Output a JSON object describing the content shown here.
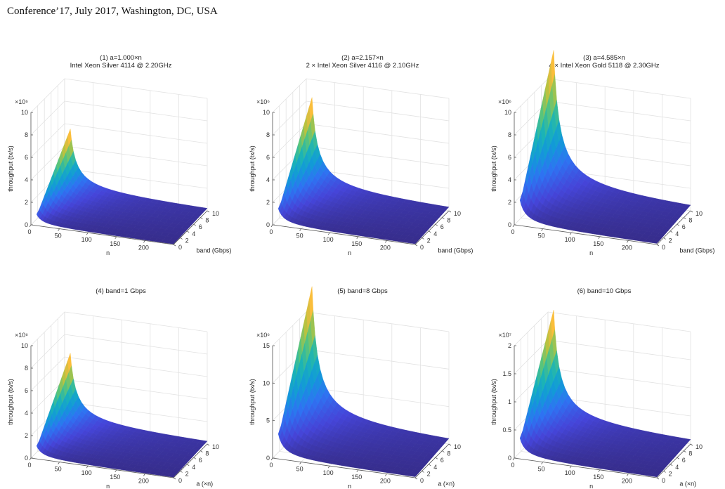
{
  "header": {
    "text": "Conference’17, July 2017, Washington, DC, USA"
  },
  "chart_data": [
    {
      "type": "surface",
      "title_lines": [
        "(1) a=1.000×n",
        "Intel Xeon Silver 4114 @ 2.20GHz"
      ],
      "xlabel": "n",
      "ylabel": "band (Gbps)",
      "zlabel": "throughput (tx/s)",
      "exponent": "×10⁶",
      "xlim": [
        0,
        250
      ],
      "x_ticks": [
        0,
        50,
        100,
        150,
        200
      ],
      "ylim": [
        0,
        10
      ],
      "y_ticks": [
        0,
        2,
        4,
        6,
        8,
        10
      ],
      "zlim": [
        0,
        10
      ],
      "z_ticks": [
        0,
        2,
        4,
        6,
        8,
        10
      ],
      "peak": {
        "n": 10,
        "band": 10,
        "throughput": 5.6
      },
      "grid": true
    },
    {
      "type": "surface",
      "title_lines": [
        "(2) a=2.157×n",
        "2 × Intel Xeon Silver 4116 @ 2.10GHz"
      ],
      "xlabel": "n",
      "ylabel": "band (Gbps)",
      "zlabel": "throughput (tx/s)",
      "exponent": "×10⁶",
      "xlim": [
        0,
        250
      ],
      "x_ticks": [
        0,
        50,
        100,
        150,
        200
      ],
      "ylim": [
        0,
        10
      ],
      "y_ticks": [
        0,
        2,
        4,
        6,
        8,
        10
      ],
      "zlim": [
        0,
        10
      ],
      "z_ticks": [
        0,
        2,
        4,
        6,
        8,
        10
      ],
      "peak": {
        "n": 10,
        "band": 10,
        "throughput": 8.4
      },
      "grid": true
    },
    {
      "type": "surface",
      "title_lines": [
        "(3) a=4.585×n",
        "4 × Intel Xeon Gold 5118 @ 2.30GHz"
      ],
      "xlabel": "n",
      "ylabel": "band (Gbps)",
      "zlabel": "throughput (tx/s)",
      "exponent": "×10⁶",
      "xlim": [
        0,
        250
      ],
      "x_ticks": [
        0,
        50,
        100,
        150,
        200
      ],
      "ylim": [
        0,
        10
      ],
      "y_ticks": [
        0,
        2,
        4,
        6,
        8,
        10
      ],
      "zlim": [
        0,
        10
      ],
      "z_ticks": [
        0,
        2,
        4,
        6,
        8,
        10
      ],
      "peak": {
        "n": 10,
        "band": 10,
        "throughput": 12.6
      },
      "grid": true
    },
    {
      "type": "surface",
      "title_lines": [
        "(4) band=1 Gbps"
      ],
      "xlabel": "n",
      "ylabel": "a (×n)",
      "zlabel": "throughput (tx/s)",
      "exponent": "×10⁶",
      "xlim": [
        0,
        250
      ],
      "x_ticks": [
        0,
        50,
        100,
        150,
        200
      ],
      "ylim": [
        0,
        10
      ],
      "y_ticks": [
        0,
        2,
        4,
        6,
        8,
        10
      ],
      "zlim": [
        0,
        10
      ],
      "z_ticks": [
        0,
        2,
        4,
        6,
        8,
        10
      ],
      "peak": {
        "n": 10,
        "a": 10,
        "throughput": 6.4
      },
      "grid": true
    },
    {
      "type": "surface",
      "title_lines": [
        "(5) band=8 Gbps"
      ],
      "xlabel": "n",
      "ylabel": "a (×n)",
      "zlabel": "throughput (tx/s)",
      "exponent": "×10⁶",
      "xlim": [
        0,
        250
      ],
      "x_ticks": [
        0,
        50,
        100,
        150,
        200
      ],
      "ylim": [
        0,
        10
      ],
      "y_ticks": [
        0,
        2,
        4,
        6,
        8,
        10
      ],
      "zlim": [
        0,
        15
      ],
      "z_ticks": [
        0,
        5,
        10,
        15
      ],
      "peak": {
        "n": 10,
        "a": 10,
        "throughput": 18.5
      },
      "grid": true
    },
    {
      "type": "surface",
      "title_lines": [
        "(6) band=10 Gbps"
      ],
      "xlabel": "n",
      "ylabel": "a (×n)",
      "zlabel": "throughput (tx/s)",
      "exponent": "×10⁷",
      "xlim": [
        0,
        250
      ],
      "x_ticks": [
        0,
        50,
        100,
        150,
        200
      ],
      "ylim": [
        0,
        10
      ],
      "y_ticks": [
        0,
        2,
        4,
        6,
        8,
        10
      ],
      "zlim": [
        0,
        2
      ],
      "z_ticks": [
        0,
        0.5,
        1,
        1.5,
        2
      ],
      "peak": {
        "n": 10,
        "a": 10,
        "throughput": 2.05
      },
      "grid": true
    }
  ]
}
